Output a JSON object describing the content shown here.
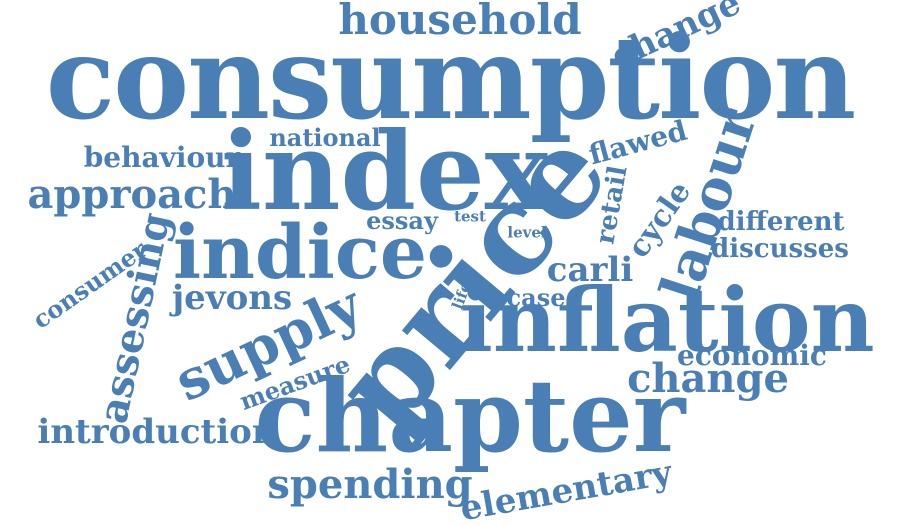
{
  "word_color": "#4a7fb5",
  "background_color": "#ffffff",
  "words": [
    {
      "id": "consumption",
      "text": "consumption"
    },
    {
      "id": "household",
      "text": "household"
    },
    {
      "id": "change-top",
      "text": "change"
    },
    {
      "id": "index",
      "text": "index"
    },
    {
      "id": "behaviour",
      "text": "behaviour"
    },
    {
      "id": "national",
      "text": "national"
    },
    {
      "id": "flawed",
      "text": "flawed"
    },
    {
      "id": "approach",
      "text": "approach"
    },
    {
      "id": "labour",
      "text": "labour"
    },
    {
      "id": "price",
      "text": "price"
    },
    {
      "id": "retail",
      "text": "retail"
    },
    {
      "id": "cycle",
      "text": "cycle"
    },
    {
      "id": "different",
      "text": "different"
    },
    {
      "id": "essay",
      "text": "essay"
    },
    {
      "id": "test",
      "text": "test"
    },
    {
      "id": "level",
      "text": "level"
    },
    {
      "id": "indice",
      "text": "indice"
    },
    {
      "id": "discusses",
      "text": "discusses"
    },
    {
      "id": "assessing",
      "text": "assessing"
    },
    {
      "id": "consumer",
      "text": "consumer"
    },
    {
      "id": "carli",
      "text": "carli"
    },
    {
      "id": "jevons",
      "text": "jevons"
    },
    {
      "id": "case",
      "text": "case"
    },
    {
      "id": "life",
      "text": "life"
    },
    {
      "id": "supply",
      "text": "supply"
    },
    {
      "id": "inflation",
      "text": "inflation"
    },
    {
      "id": "economic",
      "text": "economic"
    },
    {
      "id": "measure",
      "text": "measure"
    },
    {
      "id": "change",
      "text": "change"
    },
    {
      "id": "chapter",
      "text": "chapter"
    },
    {
      "id": "introduction",
      "text": "introduction"
    },
    {
      "id": "spending",
      "text": "spending"
    },
    {
      "id": "elementary",
      "text": "elementary"
    }
  ]
}
